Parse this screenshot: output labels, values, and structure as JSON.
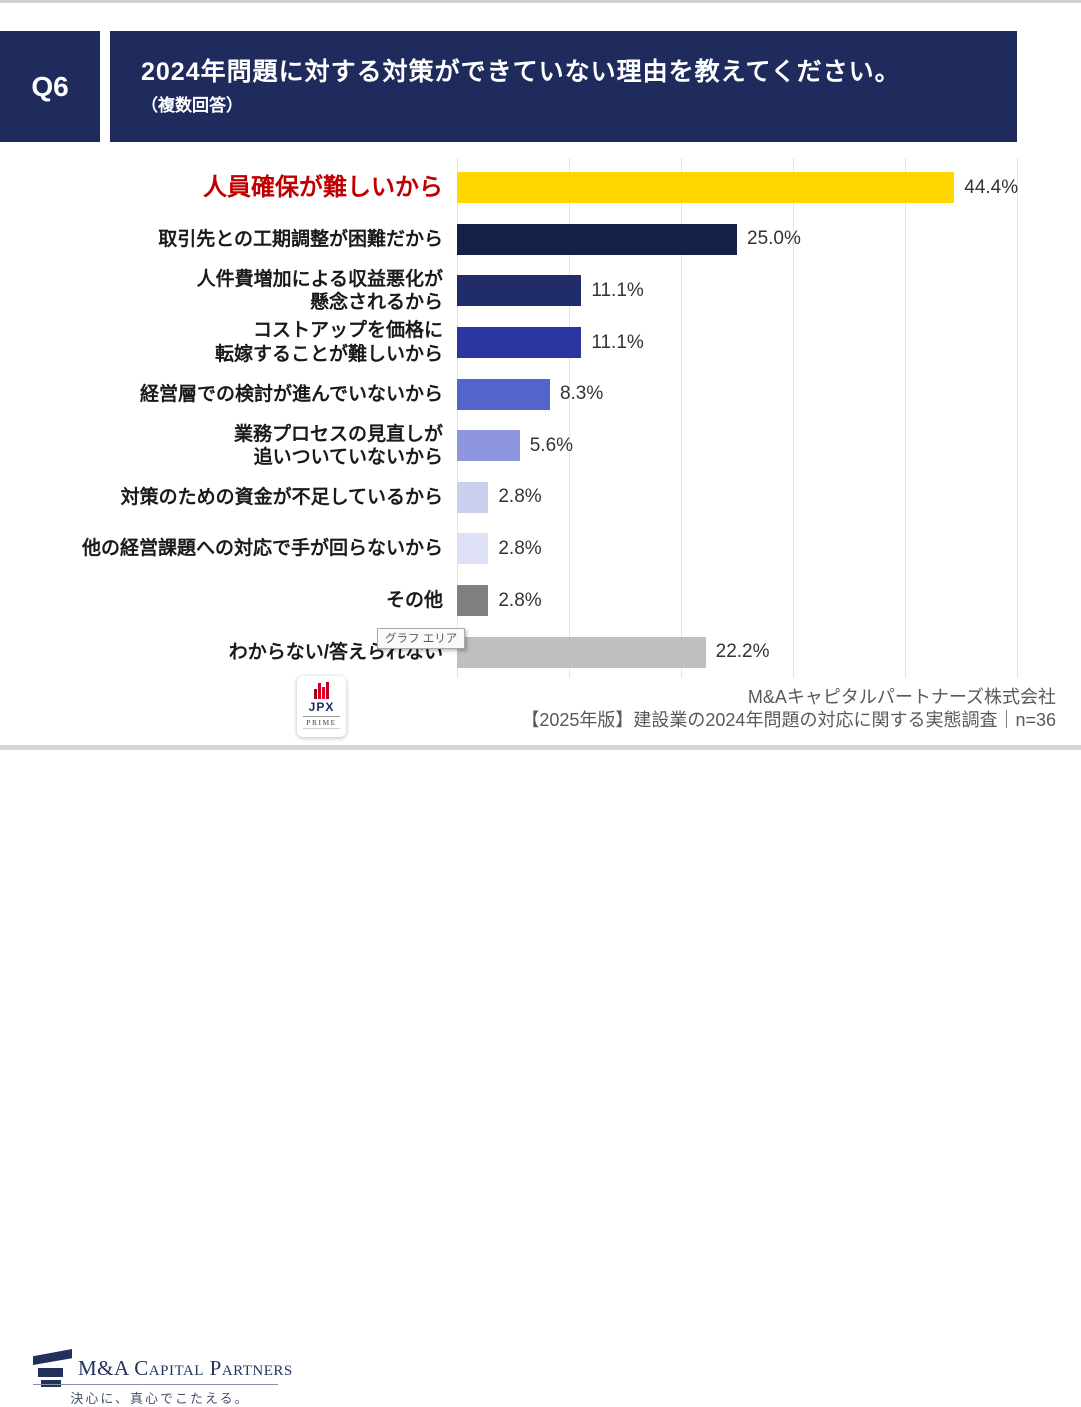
{
  "header": {
    "question_no": "Q6",
    "title": "2024年問題に対する対策ができていない理由を教えてください。",
    "subtitle": "（複数回答）"
  },
  "chart_data": {
    "type": "bar",
    "orientation": "horizontal",
    "title": "2024年問題に対する対策ができていない理由（複数回答）",
    "xlabel": "",
    "ylabel": "",
    "xlim": [
      0,
      50
    ],
    "gridline_step_percent": 10,
    "grid": true,
    "legend": false,
    "categories": [
      "人員確保が難しいから",
      "取引先との工期調整が困難だから",
      "人件費増加による収益悪化が\n懸念されるから",
      "コストアップを価格に\n転嫁することが難しいから",
      "経営層での検討が進んでいないから",
      "業務プロセスの見直しが\n追いついていないから",
      "対策のための資金が不足しているから",
      "他の経営課題への対応で手が回らないから",
      "その他",
      "わからない/答えられない"
    ],
    "values": [
      44.4,
      25.0,
      11.1,
      11.1,
      8.3,
      5.6,
      2.8,
      2.8,
      2.8,
      22.2
    ],
    "value_labels": [
      "44.4%",
      "25.0%",
      "11.1%",
      "11.1%",
      "8.3%",
      "5.6%",
      "2.8%",
      "2.8%",
      "2.8%",
      "22.2%"
    ],
    "bar_colors": [
      "#ffd800",
      "#152048",
      "#212d6b",
      "#2c36a0",
      "#5464cb",
      "#8e96de",
      "#cacfee",
      "#dee1f5",
      "#7f7f7f",
      "#bfbfbf"
    ],
    "emphasis_index": 0,
    "emphasis_label_color": "#c00000"
  },
  "tooltip": {
    "label": "グラフ エリア"
  },
  "footer": {
    "logo": {
      "name": "M&A Capital Partners",
      "tagline": "決心に、真心でこたえる。"
    },
    "jpx": {
      "line1": "JPX",
      "line2": "PRIME"
    },
    "company": "M&Aキャピタルパートナーズ株式会社",
    "survey": "【2025年版】建設業の2024年問題の対応に関する実態調査｜n=36"
  },
  "colors": {
    "header_navy": "#202b5d",
    "accent_red": "#c00000",
    "gridline": "#e4e4e4",
    "value_text": "#333333",
    "footer_text": "#595959"
  }
}
